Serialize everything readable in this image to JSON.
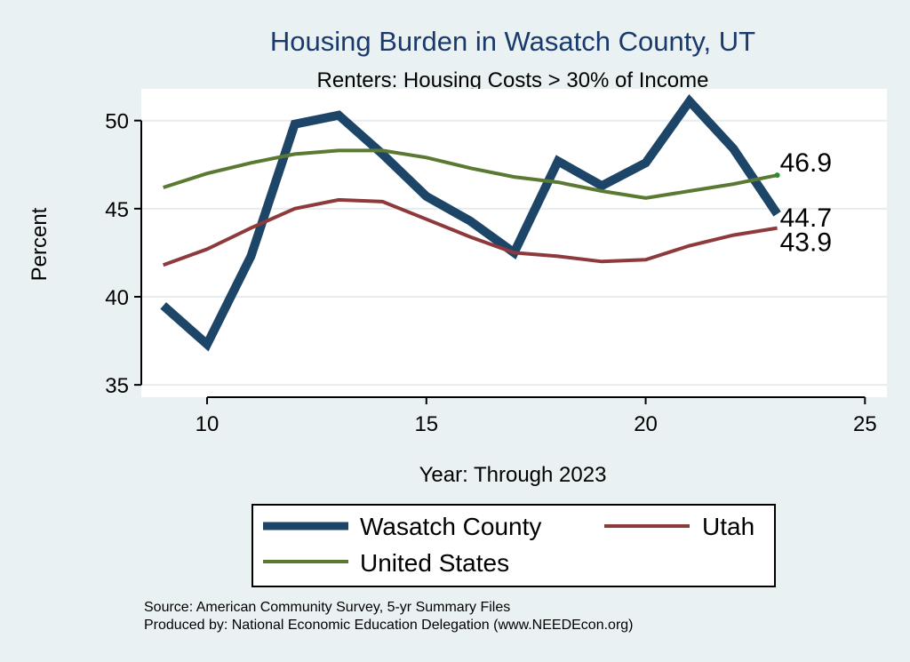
{
  "chart_data": {
    "type": "line",
    "title": "Housing Burden in Wasatch County, UT",
    "subtitle": "Renters: Housing Costs > 30% of Income",
    "xlabel": "Year: Through 2023",
    "ylabel": "Percent",
    "xlim": [
      8.5,
      25.5
    ],
    "ylim": [
      34.3,
      51.8
    ],
    "xticks": [
      10,
      15,
      20,
      25
    ],
    "yticks": [
      35,
      40,
      45,
      50
    ],
    "x": [
      9,
      10,
      11,
      12,
      13,
      14,
      15,
      16,
      17,
      18,
      19,
      20,
      21,
      22,
      23
    ],
    "series": [
      {
        "name": "Wasatch County",
        "color": "#1d4568",
        "values": [
          39.5,
          37.3,
          42.3,
          49.8,
          50.3,
          48.1,
          45.7,
          44.3,
          42.5,
          47.7,
          46.3,
          47.6,
          51.1,
          48.4,
          44.7
        ],
        "end_label": "44.7"
      },
      {
        "name": "Utah",
        "color": "#8e3a3c",
        "values": [
          41.8,
          42.7,
          43.9,
          45.0,
          45.5,
          45.4,
          44.4,
          43.4,
          42.5,
          42.3,
          42.0,
          42.1,
          42.9,
          43.5,
          43.9
        ],
        "end_label": "43.9"
      },
      {
        "name": "United States",
        "color": "#5a7a33",
        "values": [
          46.2,
          47.0,
          47.6,
          48.1,
          48.3,
          48.3,
          47.9,
          47.3,
          46.8,
          46.5,
          46.0,
          45.6,
          46.0,
          46.4,
          46.9
        ],
        "end_label": "46.9"
      }
    ],
    "legend": [
      "Wasatch County",
      "Utah",
      "United States"
    ],
    "grid": true,
    "notes": [
      "Source: American Community Survey, 5-yr Summary Files",
      "Produced by: National Economic Education Delegation (www.NEEDEcon.org)"
    ]
  },
  "colors": {
    "background": "#eaf1f3",
    "plot_background": "#ffffff",
    "grid": "#e6ecef",
    "title": "#1a3a6b"
  }
}
